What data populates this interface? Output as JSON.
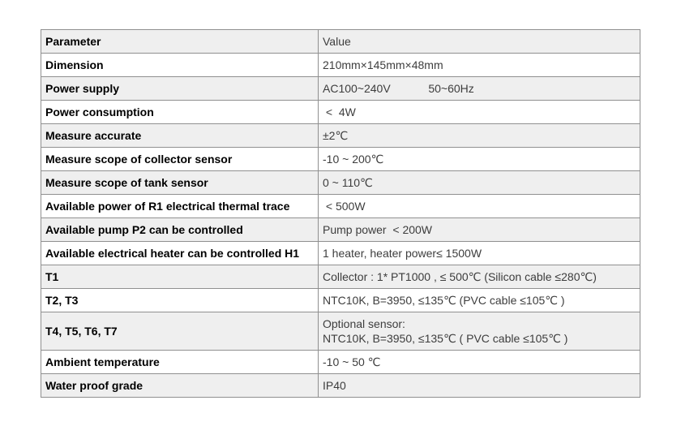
{
  "page": {
    "background_color": "#ffffff",
    "stripe_color": "#efefef",
    "border_color": "#909090"
  },
  "table": {
    "rows": [
      {
        "param": "Parameter",
        "value": "Value"
      },
      {
        "param": "Dimension",
        "value": "210mm×145mm×48mm"
      },
      {
        "param": "Power supply",
        "value": "AC100~240V            50~60Hz"
      },
      {
        "param": "Power consumption",
        "value": " <  4W"
      },
      {
        "param": "Measure accurate",
        "value": "±2℃"
      },
      {
        "param": "Measure scope of collector sensor",
        "value": "-10 ~ 200℃"
      },
      {
        "param": "Measure scope of tank sensor",
        "value": "0 ~ 110℃"
      },
      {
        "param": "Available power of R1 electrical thermal trace",
        "value": " < 500W"
      },
      {
        "param": "Available pump P2 can be controlled",
        "value": "Pump power  < 200W"
      },
      {
        "param": "Available electrical heater can be controlled H1",
        "value": "1 heater, heater power≤ 1500W"
      },
      {
        "param": "T1",
        "value": "Collector : 1* PT1000 , ≤ 500℃ (Silicon cable ≤280℃)"
      },
      {
        "param": "T2, T3",
        "value": "NTC10K, B=3950, ≤135℃ (PVC cable ≤105℃ )"
      },
      {
        "param": "T4, T5, T6, T7",
        "value": "Optional sensor:\nNTC10K, B=3950, ≤135℃ ( PVC cable ≤105℃ )"
      },
      {
        "param": "Ambient temperature",
        "value": "-10 ~ 50 ℃"
      },
      {
        "param": "Water proof grade",
        "value": "IP40"
      }
    ]
  }
}
